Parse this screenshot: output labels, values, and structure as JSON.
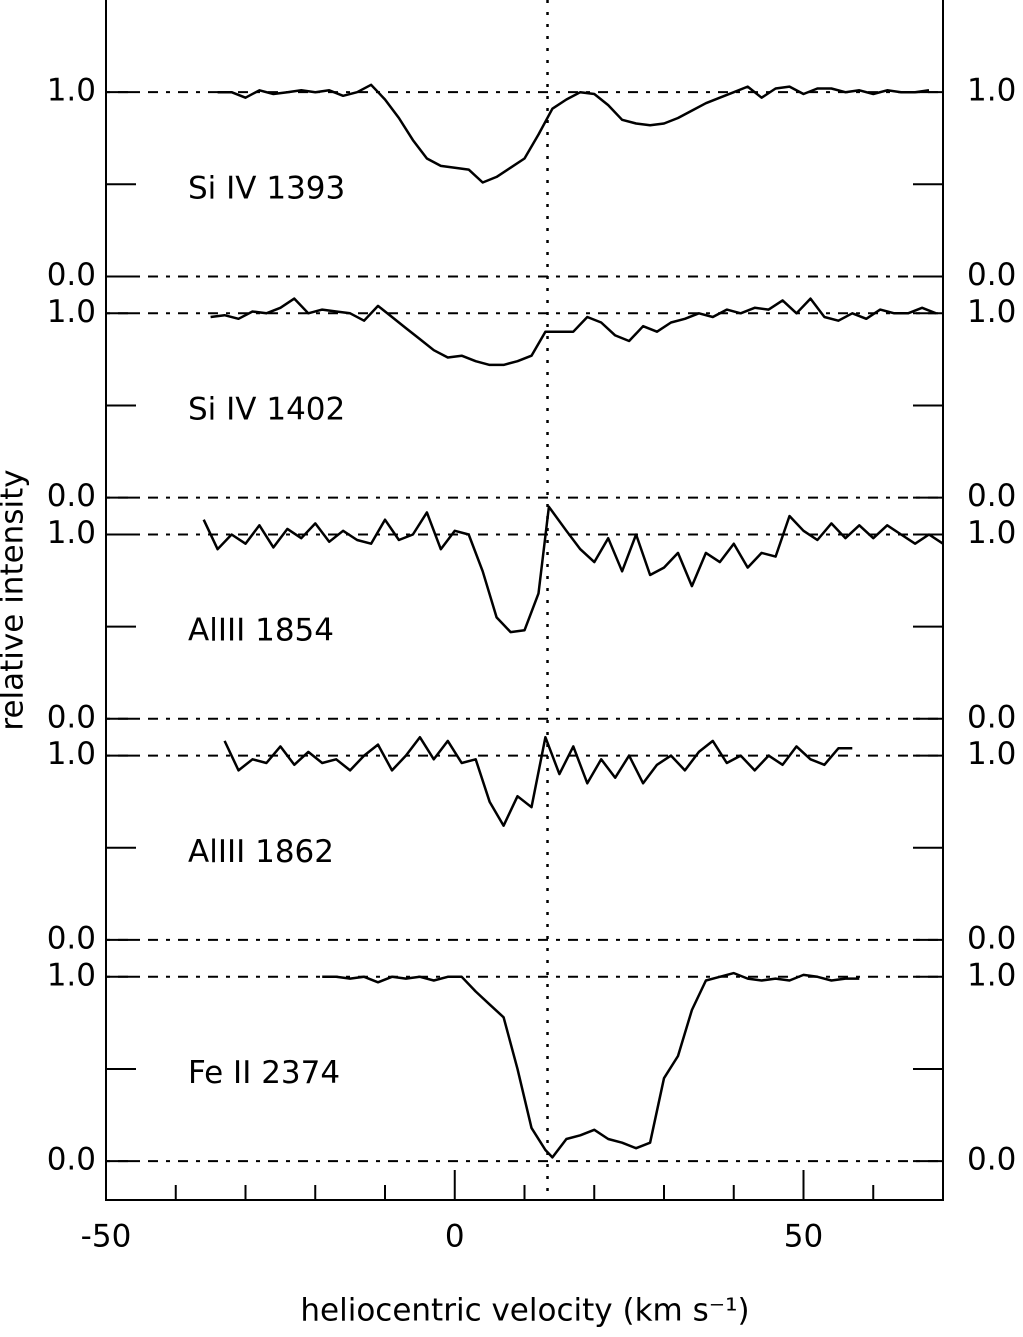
{
  "figure": {
    "xlabel": "heliocentric velocity (km s⁻¹)",
    "ylabel": "relative intensity",
    "xlim": [
      -50,
      70
    ],
    "xticks": [
      -50,
      0,
      50
    ],
    "minor_xticks": [
      -40,
      -30,
      -20,
      -10,
      10,
      20,
      30,
      40,
      60
    ],
    "vline": 13.3,
    "color": "#000000"
  },
  "chart_data": [
    {
      "type": "line",
      "label": "Si IV 1393",
      "ylim": [
        0,
        1.5
      ],
      "yticks": [
        {
          "value": 0,
          "label": "0.0"
        },
        {
          "value": 1,
          "label": "1.0"
        }
      ],
      "minor_yticks": [
        0.5
      ],
      "x": [
        -34,
        -32,
        -30,
        -28,
        -26,
        -24,
        -22,
        -20,
        -18,
        -16,
        -14,
        -12,
        -10,
        -8,
        -6,
        -4,
        -2,
        0,
        2,
        4,
        6,
        8,
        10,
        12,
        14,
        16,
        18,
        20,
        22,
        24,
        26,
        28,
        30,
        32,
        34,
        36,
        38,
        40,
        42,
        44,
        46,
        48,
        50,
        52,
        54,
        56,
        58,
        60,
        62,
        64,
        66,
        68
      ],
      "values": [
        1.0,
        1.0,
        0.97,
        1.01,
        0.99,
        1.0,
        1.01,
        1.0,
        1.01,
        0.98,
        1.0,
        1.04,
        0.96,
        0.86,
        0.74,
        0.64,
        0.6,
        0.59,
        0.58,
        0.51,
        0.54,
        0.59,
        0.64,
        0.77,
        0.91,
        0.96,
        1.0,
        0.99,
        0.93,
        0.85,
        0.83,
        0.82,
        0.83,
        0.86,
        0.9,
        0.94,
        0.97,
        1.0,
        1.03,
        0.97,
        1.02,
        1.03,
        0.99,
        1.02,
        1.02,
        1.0,
        1.01,
        0.99,
        1.01,
        1.0,
        1.0,
        1.01
      ]
    },
    {
      "type": "line",
      "label": "Si IV 1402",
      "ylim": [
        0,
        1.2
      ],
      "yticks": [
        {
          "value": 0,
          "label": "0.0"
        },
        {
          "value": 1,
          "label": "1.0"
        }
      ],
      "minor_yticks": [
        0.5
      ],
      "x": [
        -35,
        -33,
        -31,
        -29,
        -27,
        -25,
        -23,
        -21,
        -19,
        -17,
        -15,
        -13,
        -11,
        -9,
        -7,
        -5,
        -3,
        -1,
        1,
        3,
        5,
        7,
        9,
        11,
        13,
        15,
        17,
        19,
        21,
        23,
        25,
        27,
        29,
        31,
        33,
        35,
        37,
        39,
        41,
        43,
        45,
        47,
        49,
        51,
        53,
        55,
        57,
        59,
        61,
        63,
        65,
        67,
        69
      ],
      "values": [
        0.98,
        0.99,
        0.97,
        1.01,
        1.0,
        1.03,
        1.08,
        1.0,
        1.02,
        1.01,
        1.0,
        0.96,
        1.04,
        0.98,
        0.92,
        0.86,
        0.8,
        0.76,
        0.77,
        0.74,
        0.72,
        0.72,
        0.74,
        0.77,
        0.9,
        0.9,
        0.9,
        0.98,
        0.95,
        0.88,
        0.85,
        0.93,
        0.9,
        0.95,
        0.97,
        1.0,
        0.98,
        1.02,
        1.0,
        1.03,
        1.02,
        1.07,
        1.0,
        1.08,
        0.98,
        0.96,
        1.0,
        0.97,
        1.02,
        1.0,
        1.0,
        1.03,
        1.0
      ]
    },
    {
      "type": "line",
      "label": "AlIII 1854",
      "ylim": [
        0,
        1.2
      ],
      "yticks": [
        {
          "value": 0,
          "label": "0.0"
        },
        {
          "value": 1,
          "label": "1.0"
        }
      ],
      "minor_yticks": [
        0.5
      ],
      "x": [
        -36,
        -34,
        -32,
        -30,
        -28,
        -26,
        -24,
        -22,
        -20,
        -18,
        -16,
        -14,
        -12,
        -10,
        -8,
        -6,
        -4,
        -2,
        0,
        2,
        4,
        6,
        8,
        10,
        12,
        13.5,
        16,
        18,
        20,
        22,
        24,
        26,
        28,
        30,
        32,
        34,
        36,
        38,
        40,
        42,
        44,
        46,
        48,
        50,
        52,
        54,
        56,
        58,
        60,
        62,
        64,
        66,
        68,
        70
      ],
      "values": [
        1.08,
        0.92,
        1.0,
        0.95,
        1.05,
        0.93,
        1.03,
        0.98,
        1.06,
        0.96,
        1.02,
        0.97,
        0.95,
        1.08,
        0.97,
        1.0,
        1.12,
        0.92,
        1.02,
        1.0,
        0.8,
        0.55,
        0.47,
        0.48,
        0.68,
        1.15,
        1.02,
        0.92,
        0.85,
        0.98,
        0.8,
        1.0,
        0.78,
        0.82,
        0.9,
        0.72,
        0.9,
        0.85,
        0.95,
        0.82,
        0.9,
        0.88,
        1.1,
        1.02,
        0.97,
        1.06,
        0.98,
        1.05,
        0.98,
        1.05,
        1.0,
        0.95,
        1.0,
        0.95
      ]
    },
    {
      "type": "line",
      "label": "AlIII 1862",
      "ylim": [
        0,
        1.2
      ],
      "yticks": [
        {
          "value": 0,
          "label": "0.0"
        },
        {
          "value": 1,
          "label": "1.0"
        }
      ],
      "minor_yticks": [
        0.5
      ],
      "x": [
        -33,
        -31,
        -29,
        -27,
        -25,
        -23,
        -21,
        -19,
        -17,
        -15,
        -13,
        -11,
        -9,
        -7,
        -5,
        -3,
        -1,
        1,
        3,
        5,
        7,
        9,
        11,
        13,
        15,
        17,
        19,
        21,
        23,
        25,
        27,
        29,
        31,
        33,
        35,
        37,
        39,
        41,
        43,
        45,
        47,
        49,
        51,
        53,
        55,
        57
      ],
      "values": [
        1.08,
        0.92,
        0.98,
        0.96,
        1.05,
        0.95,
        1.02,
        0.96,
        0.98,
        0.92,
        1.0,
        1.06,
        0.92,
        1.0,
        1.1,
        0.98,
        1.08,
        0.96,
        0.98,
        0.75,
        0.62,
        0.78,
        0.72,
        1.1,
        0.9,
        1.05,
        0.85,
        0.98,
        0.88,
        1.0,
        0.85,
        0.95,
        1.0,
        0.92,
        1.02,
        1.08,
        0.96,
        1.0,
        0.92,
        1.0,
        0.95,
        1.05,
        0.98,
        0.95,
        1.04,
        1.04
      ]
    },
    {
      "type": "line",
      "label": "Fe II 2374",
      "ylim": [
        -0.2,
        1.2
      ],
      "yticks": [
        {
          "value": 0,
          "label": "0.0"
        },
        {
          "value": 1,
          "label": "1.0"
        }
      ],
      "minor_yticks": [
        0.5
      ],
      "x": [
        -19,
        -17,
        -15,
        -13,
        -11,
        -9,
        -7,
        -5,
        -3,
        -1,
        1,
        3,
        5,
        7,
        9,
        11,
        13,
        14,
        16,
        18,
        20,
        22,
        24,
        26,
        28,
        30,
        32,
        34,
        36,
        38,
        40,
        42,
        44,
        46,
        48,
        50,
        52,
        54,
        56,
        58
      ],
      "values": [
        1.0,
        1.0,
        0.99,
        1.0,
        0.97,
        1.0,
        0.99,
        1.0,
        0.98,
        1.0,
        1.0,
        0.92,
        0.85,
        0.78,
        0.5,
        0.18,
        0.06,
        0.02,
        0.12,
        0.14,
        0.17,
        0.12,
        0.1,
        0.07,
        0.1,
        0.45,
        0.57,
        0.82,
        0.98,
        1.0,
        1.02,
        0.99,
        0.98,
        0.99,
        0.98,
        1.01,
        1.0,
        0.98,
        0.99,
        0.99
      ]
    }
  ]
}
